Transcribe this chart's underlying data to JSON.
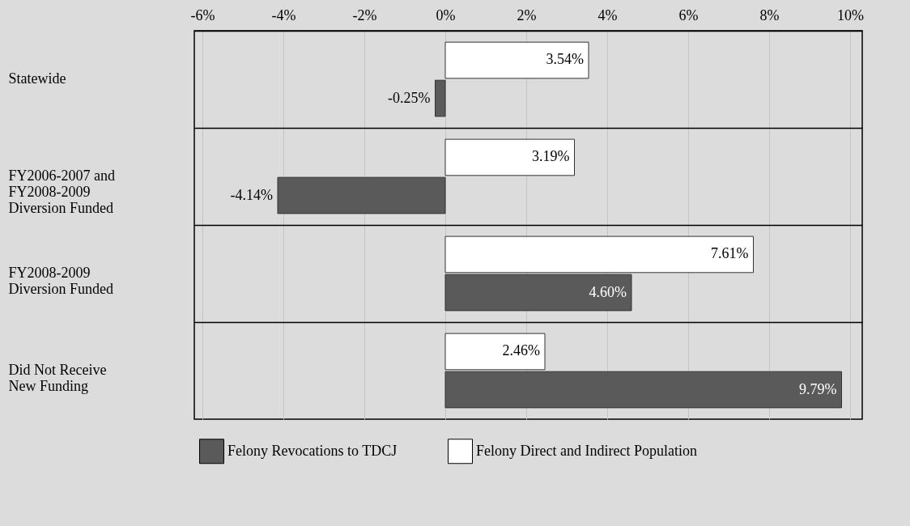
{
  "chart_data": {
    "type": "bar",
    "orientation": "horizontal",
    "categories": [
      "Statewide",
      "FY2006-2007 and\nFY2008-2009\nDiversion Funded",
      "FY2008-2009\nDiversion Funded",
      "Did Not Receive\nNew Funding"
    ],
    "series": [
      {
        "name": "Felony Revocations to TDCJ",
        "color": "#5a5a5a",
        "values": [
          -0.25,
          -4.14,
          4.6,
          9.79
        ],
        "value_labels": [
          "-0.25%",
          "-4.14%",
          "4.60%",
          "9.79%"
        ]
      },
      {
        "name": "Felony Direct and Indirect Population",
        "color": "#ffffff",
        "values": [
          3.54,
          3.19,
          7.61,
          2.46
        ],
        "value_labels": [
          "3.54%",
          "3.19%",
          "7.61%",
          "2.46%"
        ]
      }
    ],
    "xlim": [
      -6.2,
      10.3
    ],
    "xticks": [
      {
        "value": -6,
        "label": "-6%"
      },
      {
        "value": -4,
        "label": "-4%"
      },
      {
        "value": -2,
        "label": "-2%"
      },
      {
        "value": 0,
        "label": "0%"
      },
      {
        "value": 2,
        "label": "2%"
      },
      {
        "value": 4,
        "label": "4%"
      },
      {
        "value": 6,
        "label": "6%"
      },
      {
        "value": 8,
        "label": "8%"
      },
      {
        "value": 10,
        "label": "10%"
      }
    ],
    "grid": "x",
    "legend": "bottom"
  }
}
